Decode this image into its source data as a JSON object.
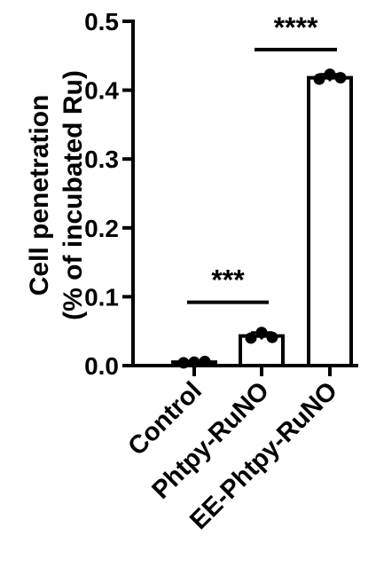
{
  "chart_data": {
    "type": "bar",
    "ylabel_line1": "Cell penetration",
    "ylabel_line2": "(% of incubated Ru)",
    "xlabel": "",
    "ylim": [
      0,
      0.5
    ],
    "yticks": [
      "0.0",
      "0.1",
      "0.2",
      "0.3",
      "0.4",
      "0.5"
    ],
    "categories": [
      "Control",
      "Phtpy-RuNO",
      "EE-Phtpy-RuNO"
    ],
    "values": [
      0.005,
      0.043,
      0.418
    ],
    "errors": [
      0.001,
      0.005,
      0.005
    ],
    "points": [
      [
        0.004,
        0.005,
        0.006
      ],
      [
        0.04,
        0.048,
        0.041
      ],
      [
        0.416,
        0.423,
        0.418
      ]
    ],
    "significance": [
      {
        "label": "***",
        "x1": 0,
        "x2": 1,
        "y": 0.092
      },
      {
        "label": "****",
        "x1": 1,
        "x2": 2,
        "y": 0.459
      }
    ],
    "bar_fill": "#ffffff",
    "bar_stroke": "#000000",
    "grid": false
  }
}
